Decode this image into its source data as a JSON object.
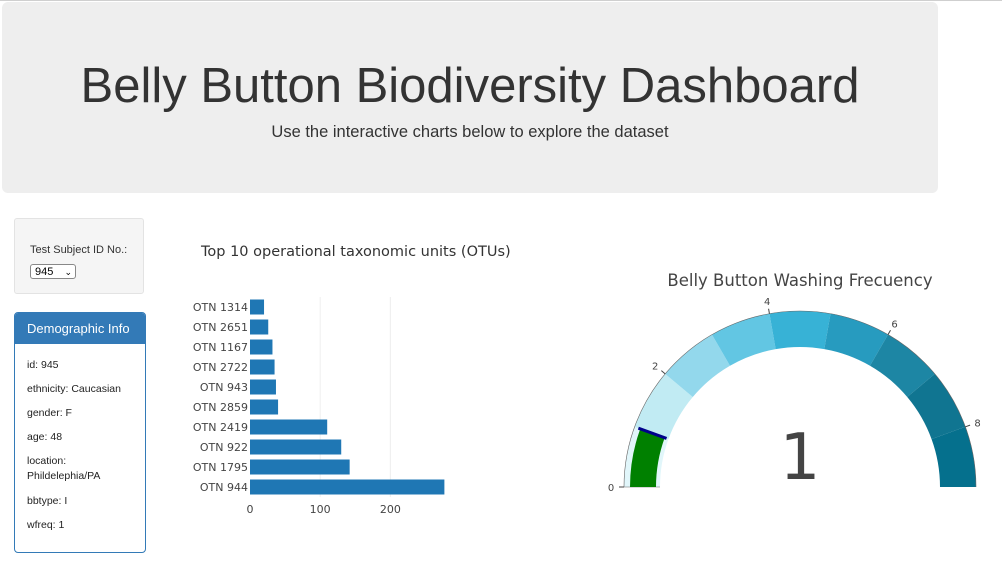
{
  "header": {
    "title": "Belly Button Biodiversity Dashboard",
    "subtitle": "Use the interactive charts below to explore the dataset"
  },
  "selector": {
    "label": "Test Subject ID No.:",
    "selected": "945"
  },
  "demographics": {
    "heading": "Demographic Info",
    "lines": [
      "id: 945",
      "ethnicity: Caucasian",
      "gender: F",
      "age: 48",
      "location: Phildelephia/PA",
      "bbtype: I",
      "wfreq: 1"
    ]
  },
  "colors": {
    "bar": "#1f77b4",
    "panel_primary": "#337ab7",
    "gauge_needle": "#00008b",
    "gauge_value": "#008000"
  },
  "chart_data": [
    {
      "type": "bar",
      "orientation": "horizontal",
      "title": "Top 10 operational taxonomic units (OTUs)",
      "categories": [
        "OTN 1314",
        "OTN 2651",
        "OTN 1167",
        "OTN 2722",
        "OTN 943",
        "OTN 2859",
        "OTN 2419",
        "OTN 922",
        "OTN 1795",
        "OTN 944"
      ],
      "values": [
        20,
        26,
        32,
        35,
        37,
        40,
        110,
        130,
        142,
        277
      ],
      "xlim": [
        0,
        285
      ],
      "xticks": [
        0,
        100,
        200
      ],
      "grid": true
    },
    {
      "type": "gauge",
      "title": "Belly Button Washing Frecuency",
      "value": 1,
      "range": [
        0,
        9
      ],
      "tick_labels": [
        "0",
        "2",
        "4",
        "6",
        "8"
      ],
      "step_colors": [
        "#e1f6fa",
        "#c1ebf3",
        "#93d8ec",
        "#62c6e3",
        "#37b2d6",
        "#279bbf",
        "#1d86a4",
        "#107591",
        "#05708d"
      ]
    }
  ]
}
